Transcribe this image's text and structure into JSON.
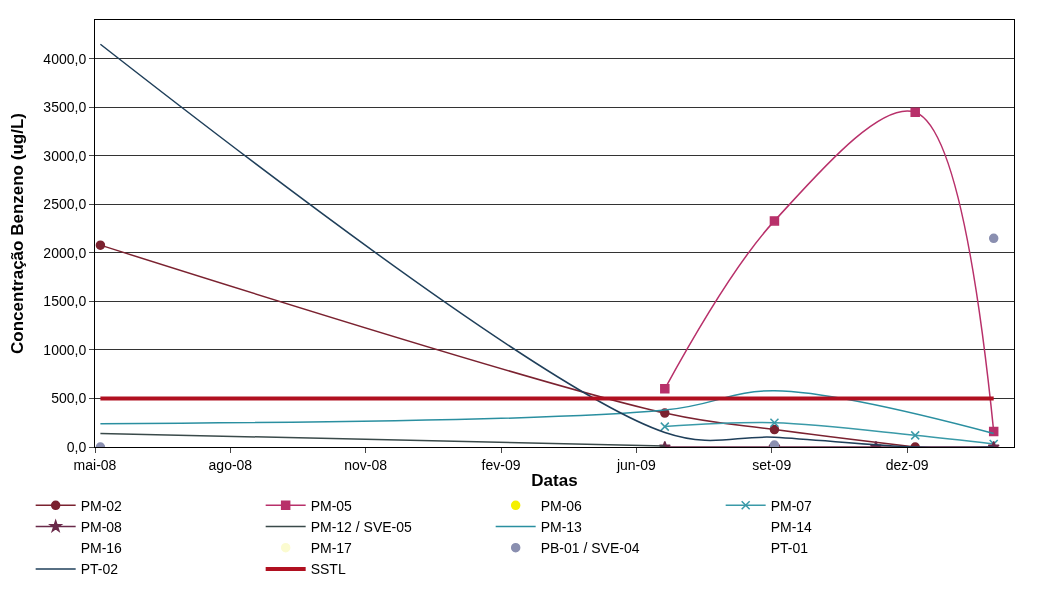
{
  "chart_data": {
    "type": "line",
    "xlabel": "Datas",
    "ylabel": "Concentração Benzeno (ug/L)",
    "x": [
      "2008-05-05",
      "2009-06-26",
      "2009-09-15",
      "2009-12-28",
      "2010-02-24"
    ],
    "xlim": [
      "2008-05-01",
      "2010-03-11"
    ],
    "xticks": [
      {
        "value": "2008-05-01",
        "label": "mai-08"
      },
      {
        "value": "2008-08-09",
        "label": "ago-08"
      },
      {
        "value": "2008-11-17",
        "label": "nov-08"
      },
      {
        "value": "2009-02-25",
        "label": "fev-09"
      },
      {
        "value": "2009-06-05",
        "label": "jun-09"
      },
      {
        "value": "2009-09-13",
        "label": "set-09"
      },
      {
        "value": "2009-12-22",
        "label": "dez-09"
      }
    ],
    "ylim": [
      0,
      4400
    ],
    "yticks": [
      {
        "value": 0,
        "label": "0,0"
      },
      {
        "value": 500,
        "label": "500,0"
      },
      {
        "value": 1000,
        "label": "1000,0"
      },
      {
        "value": 1500,
        "label": "1500,0"
      },
      {
        "value": 2000,
        "label": "2000,0"
      },
      {
        "value": 2500,
        "label": "2500,0"
      },
      {
        "value": 3000,
        "label": "3000,0"
      },
      {
        "value": 3500,
        "label": "3500,0"
      },
      {
        "value": 4000,
        "label": "4000,0"
      }
    ],
    "grid": "y",
    "legend": "bottom",
    "series": [
      {
        "name": "PM-02",
        "color": "#7b2230",
        "marker": "circle",
        "values": [
          2080,
          350,
          180,
          0,
          null
        ]
      },
      {
        "name": "PM-05",
        "color": "#b8306a",
        "marker": "square",
        "values": [
          null,
          600,
          2330,
          3450,
          160
        ]
      },
      {
        "name": "PM-06",
        "type": "scatter",
        "color": "#f5f000",
        "marker": "circle",
        "values": [
          null,
          null,
          null,
          null,
          null
        ]
      },
      {
        "name": "PM-07",
        "color": "#3a9aa8",
        "marker": "cross",
        "values": [
          null,
          210,
          250,
          120,
          30
        ]
      },
      {
        "name": "PM-08",
        "color": "#6a2a4a",
        "marker": "star",
        "x": [
          "2009-06-26",
          "2009-09-15",
          "2009-11-29",
          "2010-02-24"
        ],
        "values": [
          0,
          0,
          0,
          0
        ]
      },
      {
        "name": "PM-12 / SVE-05",
        "color": "#3a4a4a",
        "marker": "none",
        "values": [
          140,
          10,
          null,
          null,
          null
        ]
      },
      {
        "name": "PM-13",
        "color": "#2a8fa0",
        "marker": "none",
        "values": [
          240,
          380,
          580,
          null,
          140
        ]
      },
      {
        "name": "PM-14",
        "marker": "none",
        "values": [
          null,
          null,
          null,
          null,
          null
        ]
      },
      {
        "name": "PM-16",
        "marker": "none",
        "values": [
          null,
          null,
          null,
          null,
          null
        ]
      },
      {
        "name": "PM-17",
        "type": "scatter",
        "color": "#fbfbd0",
        "marker": "circle",
        "values": [
          null,
          null,
          null,
          null,
          null
        ]
      },
      {
        "name": "PB-01 / SVE-04",
        "type": "scatter",
        "color": "#8a8fb0",
        "marker": "circle",
        "values": [
          0,
          null,
          20,
          null,
          2150
        ]
      },
      {
        "name": "PT-01",
        "marker": "none",
        "values": [
          null,
          null,
          null,
          null,
          null
        ]
      },
      {
        "name": "PT-02",
        "color": "#1f3f5a",
        "marker": "none",
        "values": [
          4150,
          150,
          100,
          0,
          0
        ]
      }
    ],
    "ref_lines": [
      {
        "axis": "y",
        "value": 500,
        "label": "SSTL",
        "color": "#b01020"
      }
    ]
  }
}
